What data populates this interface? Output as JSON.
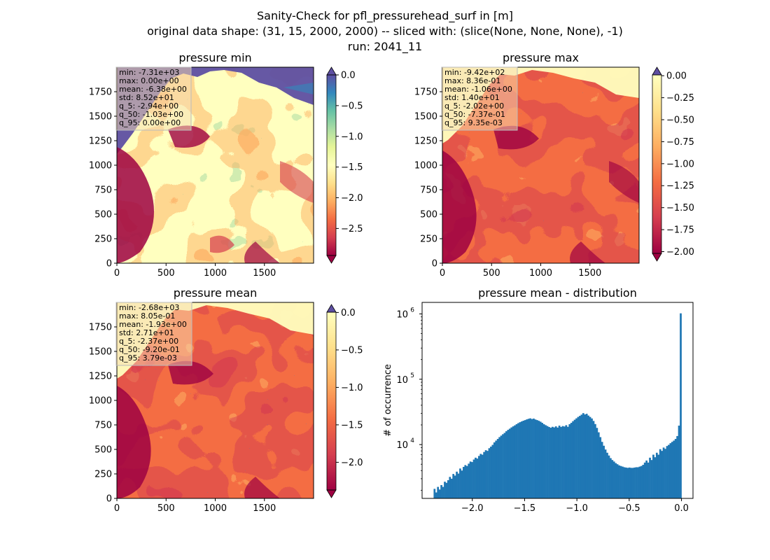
{
  "figure": {
    "title_lines": [
      "Sanity-Check for pfl_pressurehead_surf in [m]",
      "original data shape: (31, 15, 2000, 2000) -- sliced with: (slice(None, None, None), -1)",
      "run: 2041_11"
    ]
  },
  "colormap": {
    "name": "Spectral",
    "stops": [
      "#9e0142",
      "#d53e4f",
      "#f46d43",
      "#fdae61",
      "#fee08b",
      "#ffffbf",
      "#e6f598",
      "#abdda4",
      "#66c2a5",
      "#3288bd",
      "#5e4fa2"
    ]
  },
  "chart_data": [
    {
      "type": "heatmap",
      "title": "pressure min",
      "xlim": [
        0,
        2000
      ],
      "ylim": [
        0,
        2000
      ],
      "x_ticks": [
        0,
        500,
        1000,
        1500
      ],
      "y_ticks": [
        0,
        250,
        500,
        750,
        1000,
        1250,
        1500,
        1750
      ],
      "colorbar": {
        "vmin": -2.94,
        "vmax": 0.0,
        "extend": "both",
        "ticks": [
          0.0,
          -0.5,
          -1.0,
          -1.5,
          -2.0,
          -2.5
        ],
        "tick_labels": [
          "0.0",
          "−0.5",
          "−1.0",
          "−1.5",
          "−2.0",
          "−2.5"
        ]
      },
      "stats": [
        "min: -7.31e+03",
        "max: 0.00e+00",
        "mean: -6.38e+00",
        "std: 8.52e+01",
        "q_5: -2.94e+00",
        "q_50: -1.03e+00",
        "q_95: 0.00e+00"
      ]
    },
    {
      "type": "heatmap",
      "title": "pressure max",
      "xlim": [
        0,
        2000
      ],
      "ylim": [
        0,
        2000
      ],
      "x_ticks": [
        0,
        500,
        1000,
        1500
      ],
      "y_ticks": [
        0,
        250,
        500,
        750,
        1000,
        1250,
        1500,
        1750
      ],
      "colorbar": {
        "vmin": -2.02,
        "vmax": 0.00935,
        "extend": "both",
        "ticks": [
          0.0,
          -0.25,
          -0.5,
          -0.75,
          -1.0,
          -1.25,
          -1.5,
          -1.75,
          -2.0
        ],
        "tick_labels": [
          "0.00",
          "−0.25",
          "−0.50",
          "−0.75",
          "−1.00",
          "−1.25",
          "−1.50",
          "−1.75",
          "−2.00"
        ]
      },
      "stats": [
        "min: -9.42e+02",
        "max: 8.36e-01",
        "mean: -1.06e+00",
        "std: 1.40e+01",
        "q_5: -2.02e+00",
        "q_50: -7.37e-01",
        "q_95: 9.35e-03"
      ]
    },
    {
      "type": "heatmap",
      "title": "pressure mean",
      "xlim": [
        0,
        2000
      ],
      "ylim": [
        0,
        2000
      ],
      "x_ticks": [
        0,
        500,
        1000,
        1500
      ],
      "y_ticks": [
        0,
        250,
        500,
        750,
        1000,
        1250,
        1500,
        1750
      ],
      "colorbar": {
        "vmin": -2.37,
        "vmax": 0.00379,
        "extend": "both",
        "ticks": [
          0.0,
          -0.5,
          -1.0,
          -1.5,
          -2.0
        ],
        "tick_labels": [
          "0.0",
          "−0.5",
          "−1.0",
          "−1.5",
          "−2.0"
        ]
      },
      "stats": [
        "min: -2.68e+03",
        "max: 8.05e-01",
        "mean: -1.93e+00",
        "std: 2.71e+01",
        "q_5: -2.37e+00",
        "q_50: -9.20e-01",
        "q_95: 3.79e-03"
      ]
    },
    {
      "type": "bar",
      "title": "pressure mean - distribution",
      "ylabel": "# of occurrence",
      "xlabel": "",
      "yscale": "log",
      "xlim": [
        -2.48,
        0.11
      ],
      "ylim": [
        1500,
        1500000
      ],
      "color": "#1f77b4",
      "x_ticks": [
        -2.0,
        -1.5,
        -1.0,
        -0.5,
        0.0
      ],
      "x_tick_labels": [
        "−2.0",
        "−1.5",
        "−1.0",
        "−0.5",
        "0.0"
      ],
      "y_ticks": [
        10000,
        100000,
        1000000
      ],
      "y_tick_labels": [
        [
          "10",
          "4"
        ],
        [
          "10",
          "5"
        ],
        [
          "10",
          "6"
        ]
      ],
      "bin_range": [
        -2.37,
        0.0
      ],
      "values": [
        2100,
        1850,
        2250,
        2050,
        2400,
        2250,
        2700,
        2600,
        2850,
        3200,
        3000,
        3550,
        3350,
        3850,
        3600,
        4300,
        4000,
        4550,
        4850,
        4700,
        5100,
        5500,
        5400,
        5900,
        6300,
        6100,
        6700,
        7200,
        7000,
        7700,
        8200,
        8000,
        8800,
        9300,
        9900,
        10800,
        11500,
        12200,
        13000,
        13700,
        14400,
        15100,
        16000,
        16800,
        17500,
        18300,
        19000,
        19700,
        20500,
        21300,
        22000,
        22600,
        23200,
        23700,
        24300,
        24800,
        25200,
        24600,
        25000,
        24200,
        23700,
        23100,
        22400,
        21500,
        20500,
        19800,
        19200,
        18600,
        18100,
        18700,
        18300,
        19000,
        18200,
        19500,
        18600,
        19200,
        18900,
        19800,
        18700,
        20500,
        21500,
        22800,
        24000,
        25200,
        26500,
        27500,
        28700,
        30300,
        28900,
        29600,
        27800,
        26500,
        25100,
        23000,
        20600,
        18000,
        15400,
        13000,
        11000,
        9600,
        8400,
        7500,
        6800,
        6200,
        5800,
        5500,
        5200,
        5000,
        4800,
        4700,
        4600,
        4500,
        4450,
        4400,
        4450,
        4400,
        4400,
        4450,
        4500,
        4500,
        4600,
        4700,
        4900,
        5300,
        5700,
        5300,
        6300,
        5800,
        7000,
        6400,
        7500,
        7000,
        8500,
        8000,
        9000,
        8600,
        9500,
        9900,
        10500,
        11000,
        11500,
        12200,
        13500,
        19500,
        1020000
      ]
    }
  ]
}
